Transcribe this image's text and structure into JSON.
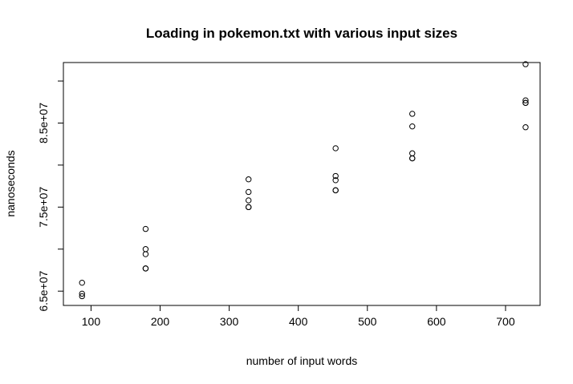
{
  "chart_data": {
    "type": "scatter",
    "title": "Loading in pokemon.txt with various input sizes",
    "xlabel": "number of input words",
    "ylabel": "nanoseconds",
    "xlim": [
      60,
      750
    ],
    "ylim": [
      63300000,
      92200000
    ],
    "x_ticks": [
      100,
      200,
      300,
      400,
      500,
      600,
      700
    ],
    "x_tick_labels": [
      "100",
      "200",
      "300",
      "400",
      "500",
      "600",
      "700"
    ],
    "y_ticks": [
      65000000,
      70000000,
      75000000,
      80000000,
      85000000,
      90000000
    ],
    "y_tick_labels": [
      "6.5e+07",
      "",
      "7.5e+07",
      "",
      "8.5e+07",
      ""
    ],
    "grid": false,
    "legend": "none",
    "series": [
      {
        "x": [
          87,
          87,
          87,
          179,
          179,
          179,
          179,
          179,
          328,
          328,
          328,
          328,
          328,
          454,
          454,
          454,
          454,
          454,
          565,
          565,
          565,
          565,
          565,
          729,
          729,
          729,
          729,
          729
        ],
        "y": [
          66000000,
          64700000,
          64400000,
          72400000,
          70000000,
          69400000,
          67700000,
          67700000,
          78300000,
          76800000,
          75800000,
          75000000,
          75000000,
          82000000,
          78700000,
          78200000,
          77000000,
          77000000,
          86100000,
          84600000,
          81400000,
          80800000,
          80800000,
          92000000,
          87700000,
          87400000,
          87400000,
          84500000
        ]
      }
    ]
  }
}
